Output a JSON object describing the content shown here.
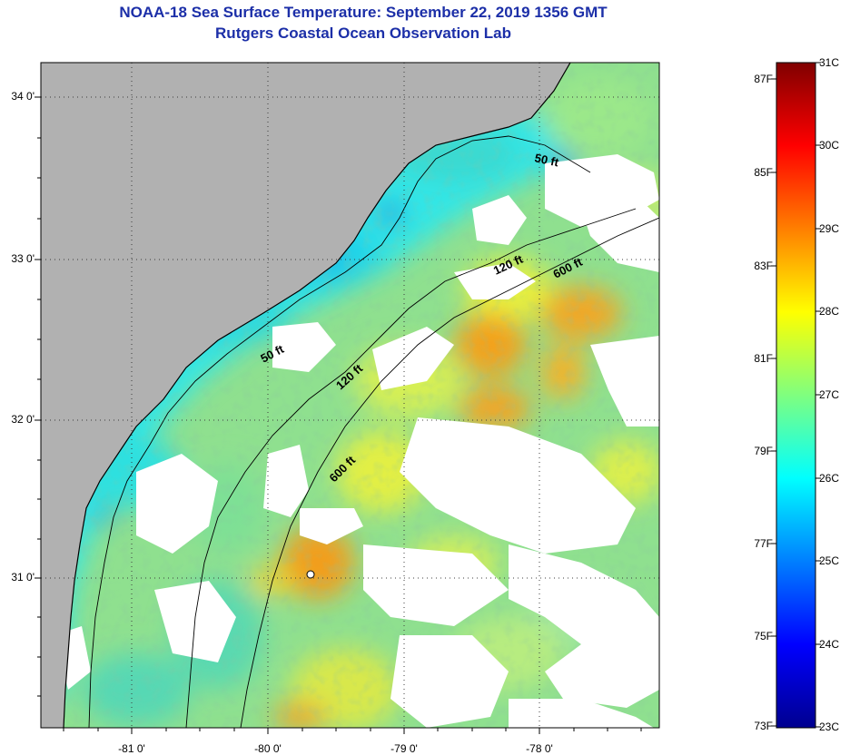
{
  "header": {
    "title_line1": "NOAA-18 Sea Surface Temperature:  September 22, 2019 1356 GMT",
    "title_line2": "Rutgers Coastal Ocean Observation Lab"
  },
  "map": {
    "lat_ticks": [
      {
        "lat": 34,
        "label": "34 0'"
      },
      {
        "lat": 33,
        "label": "33 0'"
      },
      {
        "lat": 32,
        "label": "32 0'"
      },
      {
        "lat": 31,
        "label": "31 0'"
      }
    ],
    "lon_ticks": [
      {
        "lon": -81,
        "label": "-81 0'"
      },
      {
        "lon": -80,
        "label": "-80 0'"
      },
      {
        "lon": -79,
        "label": "-79 0'"
      },
      {
        "lon": -78,
        "label": "-78 0'"
      }
    ],
    "isobath_labels": [
      "50 ft",
      "50 ft",
      "120 ft",
      "120 ft",
      "600 ft",
      "600 ft"
    ],
    "colors": {
      "land": "#b1b1b1",
      "cloud_mask": "#ffffff",
      "coastline": "#000000",
      "grid": "#4a4a4a"
    }
  },
  "colorbar": {
    "range_c": [
      23,
      31
    ],
    "fahrenheit_labels": [
      "87F",
      "85F",
      "83F",
      "81F",
      "79F",
      "77F",
      "75F",
      "73F"
    ],
    "celsius_labels": [
      "31C",
      "30C",
      "29C",
      "28C",
      "27C",
      "26C",
      "25C",
      "24C",
      "23C"
    ],
    "colors": [
      "#00008f",
      "#0000ff",
      "#007fff",
      "#00ffff",
      "#7fff7f",
      "#ffff00",
      "#ff7f00",
      "#ff0000",
      "#800000"
    ]
  }
}
